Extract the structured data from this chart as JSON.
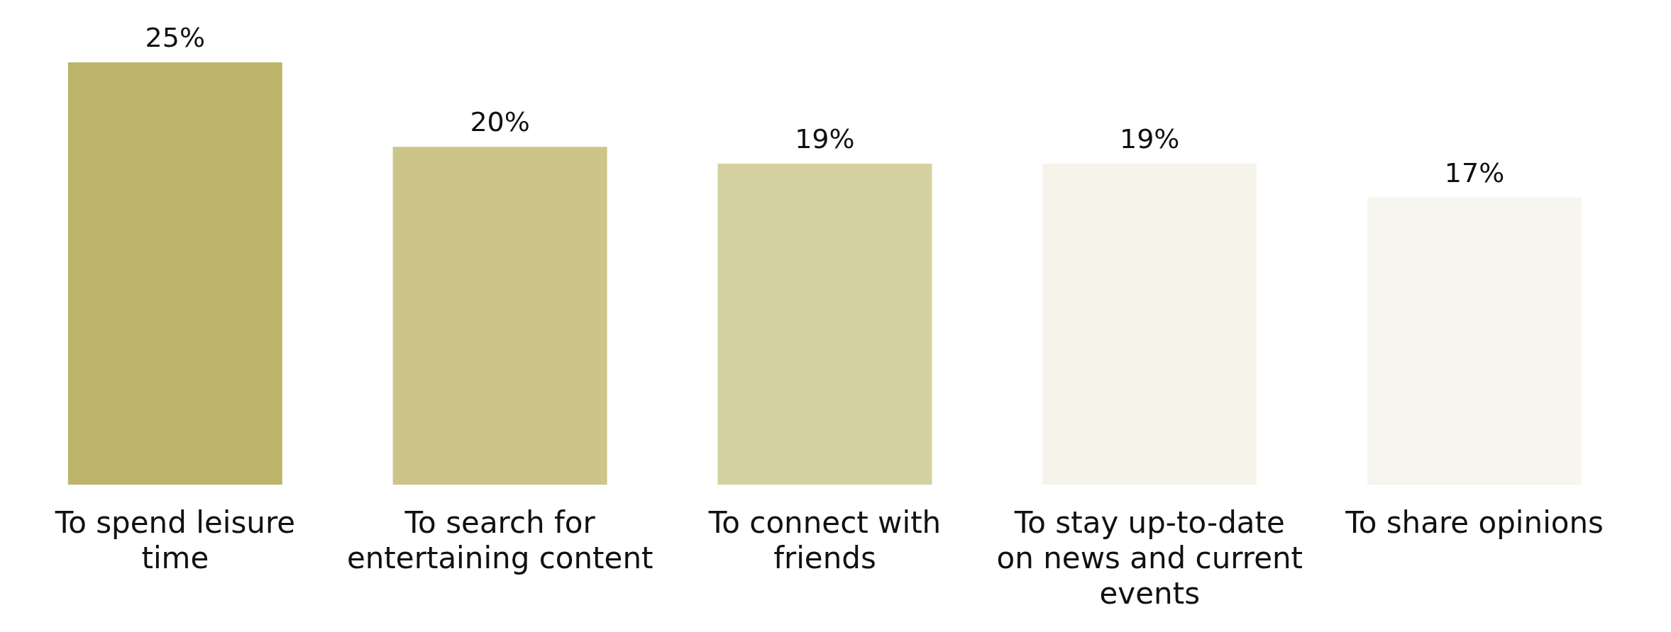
{
  "chart_data": {
    "type": "bar",
    "categories": [
      "To spend leisure time",
      "To search for entertaining content",
      "To connect with friends",
      "To stay up-to-date on news and current events",
      "To share opinions"
    ],
    "values": [
      25,
      20,
      19,
      19,
      17
    ],
    "colors": [
      "#bdb56a",
      "#cbc58a",
      "#d4d09f",
      "#f5f3ea",
      "#f6f5ee"
    ],
    "value_labels": [
      "25%",
      "20%",
      "19%",
      "19%",
      "17%"
    ]
  }
}
